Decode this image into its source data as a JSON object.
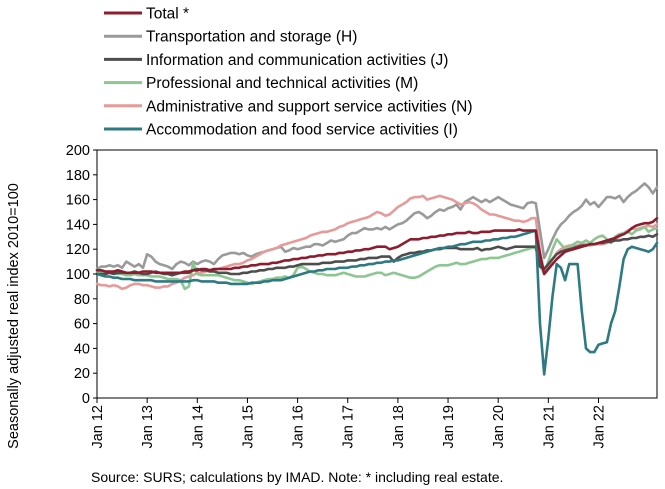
{
  "chart_data": {
    "type": "line",
    "ylabel": "Seasonally adjusted real index 2010=100",
    "ylim": [
      0,
      200
    ],
    "yticks": [
      0,
      20,
      40,
      60,
      80,
      100,
      120,
      140,
      160,
      180,
      200
    ],
    "xticks": [
      "Jan 12",
      "Jan 13",
      "Jan 14",
      "Jan 15",
      "Jan 16",
      "Jan 17",
      "Jan 18",
      "Jan 19",
      "Jan 20",
      "Jan 21",
      "Jan 22"
    ],
    "x_start": "2012-01",
    "x_end": "2022-01",
    "grid": false,
    "legend_position": "top-left",
    "source": "Source:  SURS; calculations by IMAD. Note: * including real estate.",
    "series": [
      {
        "name": "Transportation and storage (H)",
        "color": "#9a9a9a",
        "values": [
          104,
          106,
          106,
          107,
          106,
          107,
          105,
          110,
          108,
          106,
          108,
          105,
          116,
          114,
          110,
          108,
          107,
          106,
          104,
          108,
          110,
          109,
          107,
          110,
          108,
          110,
          111,
          110,
          108,
          112,
          115,
          116,
          117,
          117,
          116,
          117,
          115,
          114,
          116,
          117,
          118,
          119,
          120,
          121,
          122,
          118,
          119,
          121,
          120,
          121,
          122,
          122,
          124,
          124,
          123,
          125,
          127,
          126,
          127,
          128,
          131,
          133,
          133,
          135,
          137,
          136,
          136,
          137,
          136,
          138,
          136,
          138,
          140,
          141,
          143,
          146,
          149,
          150,
          148,
          145,
          147,
          150,
          152,
          151,
          153,
          154,
          156,
          152,
          158,
          160,
          162,
          160,
          158,
          160,
          158,
          160,
          162,
          160,
          158,
          156,
          155,
          154,
          153,
          157,
          158,
          157,
          135,
          113,
          120,
          128,
          135,
          140,
          143,
          147,
          150,
          152,
          155,
          160,
          156,
          158,
          154,
          158,
          162,
          162,
          161,
          163,
          158,
          162,
          165,
          167,
          170,
          173,
          170,
          165,
          170
        ]
      },
      {
        "name": "Administrative and support service activities (N)",
        "color": "#e79a9a",
        "values": [
          92,
          91,
          91,
          90,
          91,
          90,
          88,
          89,
          91,
          92,
          92,
          91,
          91,
          90,
          89,
          89,
          90,
          90,
          92,
          93,
          95,
          97,
          98,
          99,
          101,
          101,
          102,
          103,
          103,
          104,
          105,
          106,
          107,
          108,
          108,
          109,
          111,
          112,
          114,
          116,
          118,
          119,
          120,
          121,
          123,
          124,
          125,
          126,
          127,
          128,
          129,
          131,
          132,
          133,
          134,
          134,
          135,
          136,
          138,
          139,
          141,
          142,
          143,
          144,
          145,
          146,
          148,
          150,
          149,
          147,
          148,
          151,
          154,
          156,
          158,
          161,
          162,
          162,
          163,
          160,
          161,
          162,
          163,
          162,
          161,
          160,
          158,
          156,
          157,
          158,
          157,
          155,
          152,
          150,
          148,
          148,
          147,
          146,
          145,
          144,
          143,
          143,
          142,
          143,
          145,
          145,
          118,
          101,
          106,
          112,
          117,
          120,
          122,
          123,
          123,
          123,
          124,
          124,
          123,
          124,
          124,
          124,
          125,
          127,
          128,
          130,
          133,
          135,
          137,
          136,
          137,
          138,
          139,
          138,
          140
        ]
      },
      {
        "name": "Professional and technical activities (M)",
        "color": "#8cc691",
        "values": [
          101,
          101,
          100,
          101,
          101,
          100,
          100,
          99,
          99,
          100,
          99,
          99,
          99,
          98,
          98,
          98,
          97,
          96,
          96,
          96,
          95,
          88,
          90,
          109,
          100,
          99,
          99,
          99,
          99,
          99,
          98,
          97,
          96,
          95,
          95,
          94,
          93,
          92,
          93,
          94,
          95,
          96,
          96,
          97,
          97,
          98,
          97,
          99,
          105,
          106,
          104,
          102,
          101,
          100,
          100,
          99,
          99,
          99,
          100,
          101,
          100,
          99,
          98,
          98,
          98,
          99,
          100,
          101,
          101,
          99,
          100,
          101,
          100,
          99,
          98,
          97,
          97,
          98,
          100,
          102,
          104,
          106,
          107,
          107,
          107,
          108,
          109,
          108,
          108,
          109,
          110,
          111,
          112,
          112,
          113,
          113,
          113,
          114,
          115,
          116,
          117,
          118,
          119,
          120,
          121,
          121,
          107,
          100,
          110,
          120,
          128,
          124,
          120,
          122,
          124,
          126,
          125,
          127,
          125,
          128,
          130,
          131,
          128,
          125,
          130,
          132,
          133,
          134,
          132,
          135,
          136,
          138,
          134,
          136,
          137
        ]
      },
      {
        "name": "Information and communication activities (J)",
        "color": "#4d4d4d",
        "values": [
          100,
          100,
          100,
          101,
          100,
          101,
          101,
          101,
          101,
          102,
          101,
          100,
          100,
          101,
          102,
          101,
          100,
          100,
          99,
          100,
          101,
          101,
          101,
          103,
          104,
          103,
          103,
          102,
          102,
          101,
          101,
          101,
          100,
          100,
          100,
          101,
          101,
          102,
          102,
          103,
          103,
          104,
          104,
          105,
          105,
          105,
          106,
          106,
          107,
          108,
          108,
          108,
          108,
          108,
          109,
          109,
          109,
          110,
          110,
          110,
          111,
          111,
          111,
          112,
          112,
          113,
          113,
          113,
          114,
          114,
          114,
          110,
          113,
          115,
          116,
          117,
          117,
          118,
          118,
          119,
          119,
          120,
          120,
          121,
          121,
          121,
          121,
          120,
          120,
          120,
          120,
          121,
          119,
          120,
          120,
          121,
          122,
          121,
          120,
          121,
          122,
          122,
          122,
          122,
          122,
          122,
          106,
          104,
          108,
          112,
          116,
          118,
          119,
          120,
          121,
          122,
          123,
          123,
          124,
          124,
          125,
          125,
          126,
          126,
          127,
          127,
          128,
          128,
          129,
          129,
          130,
          130,
          131,
          130,
          132
        ]
      },
      {
        "name": "Accommodation and food service activities (I)",
        "color": "#2e7a82",
        "values": [
          100,
          99,
          98,
          98,
          97,
          97,
          96,
          96,
          96,
          95,
          95,
          95,
          95,
          95,
          94,
          94,
          94,
          94,
          94,
          94,
          94,
          94,
          94,
          95,
          95,
          94,
          94,
          94,
          94,
          93,
          93,
          93,
          92,
          92,
          92,
          92,
          92,
          93,
          93,
          93,
          94,
          94,
          95,
          95,
          95,
          96,
          97,
          98,
          99,
          100,
          101,
          102,
          102,
          103,
          103,
          104,
          104,
          104,
          105,
          105,
          105,
          106,
          106,
          107,
          107,
          108,
          108,
          109,
          109,
          110,
          110,
          111,
          111,
          112,
          113,
          114,
          115,
          116,
          117,
          118,
          119,
          120,
          121,
          121,
          122,
          122,
          123,
          124,
          124,
          125,
          126,
          126,
          126,
          127,
          127,
          128,
          128,
          129,
          129,
          130,
          130,
          131,
          132,
          133,
          134,
          135,
          60,
          19,
          48,
          82,
          108,
          105,
          95,
          108,
          108,
          108,
          70,
          40,
          37,
          37,
          43,
          44,
          45,
          60,
          70,
          90,
          112,
          120,
          122,
          121,
          120,
          119,
          118,
          120,
          125
        ]
      },
      {
        "name": "Total *",
        "color": "#8f1c2e",
        "values": [
          103,
          103,
          102,
          102,
          102,
          103,
          102,
          101,
          101,
          101,
          101,
          102,
          102,
          102,
          101,
          101,
          101,
          101,
          101,
          101,
          101,
          102,
          102,
          103,
          103,
          104,
          104,
          103,
          104,
          104,
          104,
          104,
          104,
          105,
          105,
          106,
          106,
          107,
          107,
          108,
          108,
          108,
          109,
          109,
          110,
          111,
          111,
          112,
          112,
          113,
          113,
          114,
          114,
          115,
          115,
          116,
          116,
          116,
          117,
          117,
          118,
          118,
          119,
          119,
          120,
          120,
          121,
          122,
          122,
          122,
          120,
          121,
          122,
          124,
          126,
          128,
          128,
          128,
          129,
          129,
          130,
          130,
          131,
          131,
          132,
          132,
          133,
          133,
          133,
          134,
          133,
          133,
          134,
          134,
          134,
          135,
          135,
          135,
          135,
          135,
          135,
          136,
          135,
          135,
          135,
          135,
          116,
          100,
          104,
          108,
          112,
          115,
          118,
          119,
          120,
          121,
          122,
          123,
          124,
          124,
          125,
          126,
          127,
          128,
          129,
          131,
          132,
          134,
          137,
          139,
          140,
          141,
          141,
          142,
          145
        ]
      }
    ],
    "legend_order": [
      5,
      0,
      3,
      2,
      1,
      4
    ]
  }
}
